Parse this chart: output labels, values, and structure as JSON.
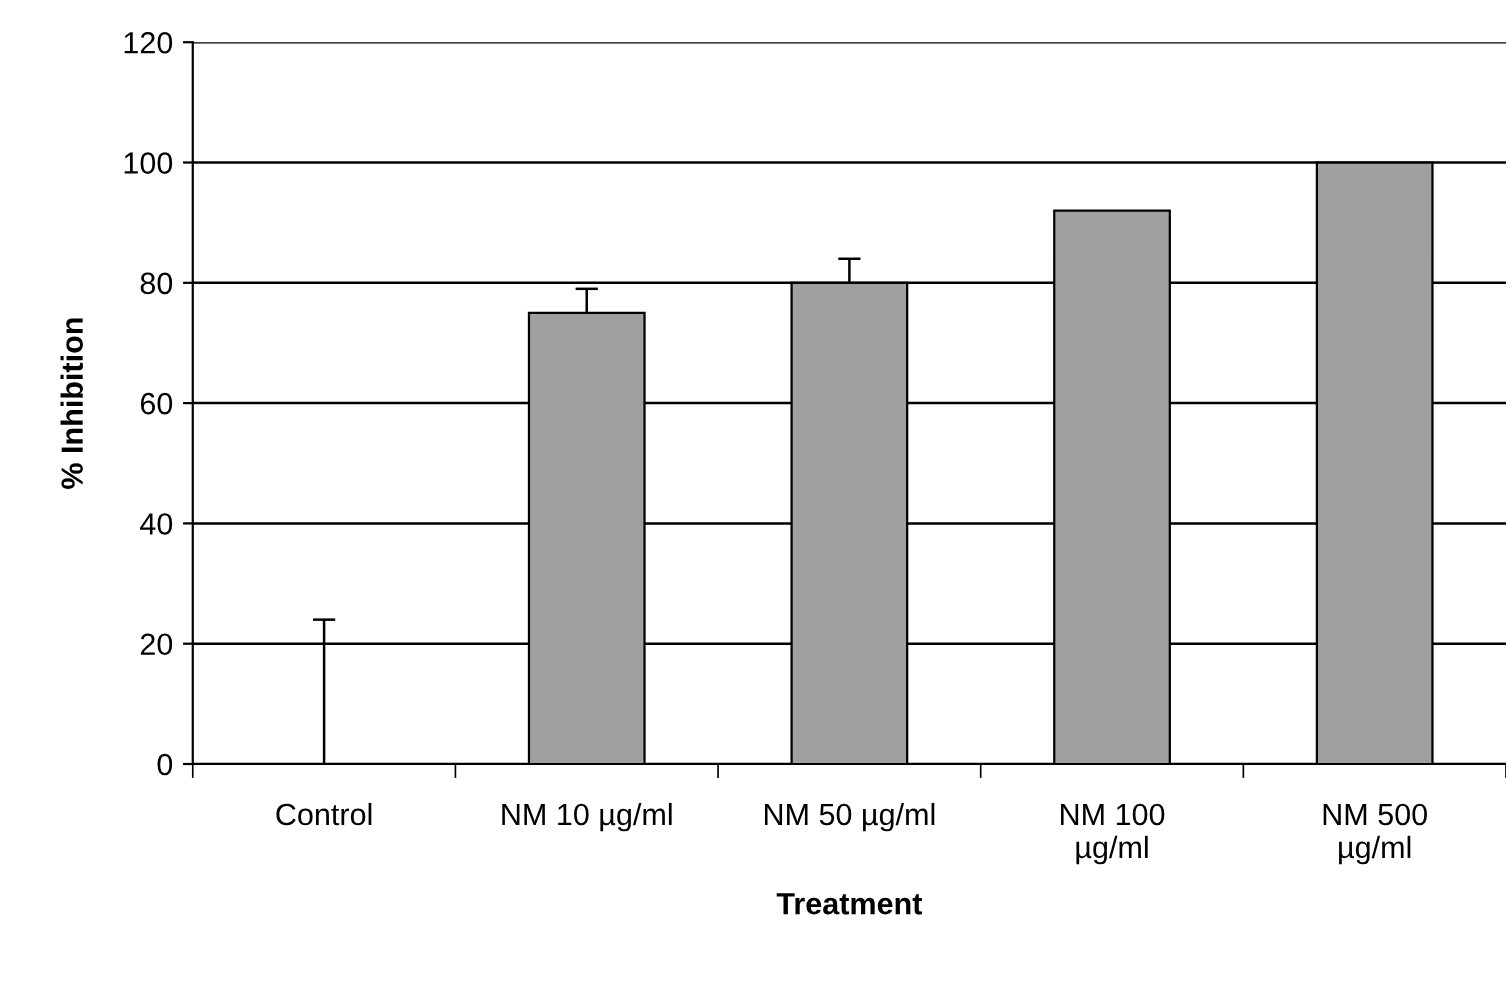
{
  "chart_data": {
    "type": "bar",
    "xlabel": "Treatment",
    "ylabel": "% Inhibition",
    "categories": [
      "Control",
      "NM 10 µg/ml",
      "NM 50 µg/ml",
      "NM 100\nµg/ml",
      "NM 500\nµg/ml"
    ],
    "values": [
      0,
      75,
      80,
      92,
      100
    ],
    "errors": [
      24,
      4,
      4,
      null,
      null
    ],
    "color": "#a0a0a0",
    "ylim": [
      0,
      120
    ],
    "yticks": [
      0,
      20,
      40,
      60,
      80,
      100,
      120
    ],
    "grid": "y",
    "legend": false
  }
}
